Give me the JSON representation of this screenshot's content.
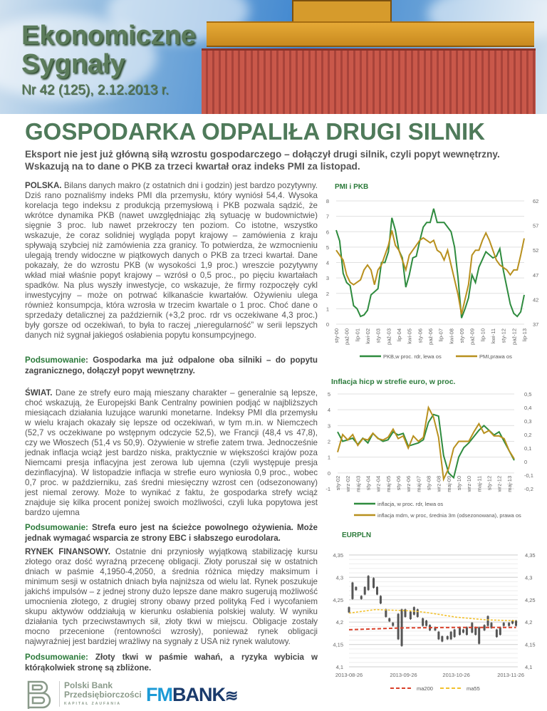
{
  "header": {
    "brand_line1": "Ekonomiczne",
    "brand_line2": "Sygnały",
    "issue": "Nr 42 (125), 2.12.2013 r.",
    "headline": "GOSPODARKA ODPALIŁA DRUGI SILNIK",
    "lead": "Eksport nie jest już główną siłą wzrostu gospodarczego – dołączył drugi silnik, czyli popyt wewnętrzny. Wskazują na to dane o PKB za trzeci kwartał oraz indeks PMI za listopad."
  },
  "sections": [
    {
      "label": "POLSKA.",
      "text": " Bilans danych makro (z ostatnich dni i godzin) jest bardzo pozytywny. Dziś rano poznaliśmy indeks PMI dla przemysłu, który wyniósł 54,4. Wysoka korelacja tego indeksu z produkcją przemysłową i PKB pozwala sądzić, że wkrótce dynamika PKB (nawet uwzględniając złą sytuację w budownictwie) sięgnie 3 proc. lub nawet przekroczy ten poziom. Co istotne, wszystko wskazuje, że coraz solidniej wygląda popyt krajowy – zamówienia z kraju spływają szybciej niż zamówienia zza granicy. To potwierdza, że wzmocnieniu ulegają trendy widoczne w piątkowych danych o PKB za trzeci kwartał. Dane pokazały, że do wzrostu PKB (w wysokości 1,9 proc.) wreszcie pozytywny wkład miał właśnie popyt krajowy – wzrósł o 0,5 proc., po pięciu kwartałach spadków. Na plus wyszły inwestycje, co wskazuje, że firmy rozpoczęły cykl inwestycyjny – może on potrwać kilkanaście kwartałów. Ożywieniu ulega również konsumpcja, która wzrosła w trzecim kwartale o 1 proc. Choć dane o sprzedaży detalicznej za październik (+3,2 proc. rdr vs oczekiwane 4,3 proc.) były gorsze od oczekiwań, to była to raczej „nieregularność” w serii lepszych danych niż sygnał jakiegoś osłabienia popytu konsumpcyjnego.",
      "summary_label": "Podsumowanie",
      "summary": ": Gospodarka ma już odpalone oba silniki – do popytu zagranicznego, dołączył popyt wewnętrzny."
    },
    {
      "label": "ŚWIAT.",
      "text": " Dane ze strefy euro mają mieszany charakter – generalnie są lepsze, choć wskazują, że Europejski Bank Centralny powinien podjąć w najbliższych miesiącach działania luzujące warunki monetarne. Indeksy PMI dla przemysłu w wielu krajach okazały się lepsze od oczekiwań, w tym m.in. w Niemczech (52,7 vs oczekiwane po wstępnym odczycie 52,5), we Francji (48,4 vs 47,8), czy we Włoszech (51,4 vs 50,9). Ożywienie w strefie zatem trwa. Jednocześnie jednak inflacja wciąż jest bardzo niska, praktycznie w większości krajów poza Niemcami presja inflacyjna jest zerowa lub ujemna (czyli występuje presja dezinflacyjna). W listopadzie inflacja w strefie euro wyniosła 0,9 proc., wobec 0,7 proc. w październiku, zaś średni miesięczny wzrost cen (odsezonowany) jest niemal zerowy. Może to wynikać z faktu, że gospodarka strefy wciąż znajduje się kilka procent poniżej swoich możliwości, czyli luka popytowa jest bardzo ujemna",
      "summary_label": "Podsumowanie:",
      "summary": " Strefa euro jest na ścieżce powolnego ożywienia. Może jednak wymagać wsparcia ze strony EBC i słabszego eurodolara."
    },
    {
      "label": "RYNEK FINANSOWY.",
      "text": " Ostatnie dni przyniosły wyjątkową stabilizację kursu złotego oraz dość wyraźną przecenę obligacji. Złoty poruszał się w ostatnich dniach w paśmie 4,1950-4,2050, a średnia różnica między maksimum i minimum sesji w ostatnich dniach była najniższa od wielu lat. Rynek poszukuje jakichś impulsów – z jednej strony dużo lepsze dane makro sugerują możliwość umocnienia złotego, z drugiej strony obawy przed polityką Fed i wycofaniem skupu aktywów oddziałują w kierunku osłabienia polskiej waluty. W wyniku działania tych przeciwstawnych sił, złoty tkwi w miejscu. Obligacje zostały mocno przecenione (rentowności wzrosły), ponieważ rynek obligacji najwyraźniej jest bardziej wrażliwy na sygnały z USA niż rynek walutowy.",
      "summary_label": "Podsumowanie:",
      "summary": " Złoty tkwi w paśmie wahań, a ryzyka wybicia w którąkolwiek stronę są zbliżone."
    }
  ],
  "footer": {
    "logo1_line1": "Polski Bank",
    "logo1_line2": "Przedsiębiorczości",
    "logo1_line3": "KAPITAŁ ZAUFANIA",
    "logo2_a": "FM",
    "logo2_b": "BANK"
  },
  "colors": {
    "green_series": "#2e8b3e",
    "gold_series": "#b8901e",
    "ma200": "#d9402a",
    "ma55": "#f2c12e",
    "title_green": "#2b7a3a",
    "brand_green": "#5c7c5c"
  },
  "chart_data": [
    {
      "type": "line",
      "title": "PMI i PKB",
      "x_ticks": [
        "sty-00",
        "paź-00",
        "lip-01",
        "kwi-02",
        "sty-03",
        "paź-03",
        "lip-04",
        "kwi-05",
        "sty-06",
        "paź-06",
        "lip-07",
        "kwi-08",
        "sty-09",
        "paź-09",
        "lip-10",
        "kwi-11",
        "sty-12",
        "paź-12",
        "lip-13"
      ],
      "ylim_left": [
        0,
        8
      ],
      "yticks_left": [
        "0",
        "1",
        "2",
        "3",
        "4",
        "5",
        "6",
        "7",
        "8"
      ],
      "ylim_right": [
        37,
        62
      ],
      "yticks_right": [
        "37",
        "42",
        "47",
        "52",
        "57",
        "62"
      ],
      "grid": true,
      "legend": "bottom",
      "series": [
        {
          "name": "PKB,w proc. rdr, lewa os",
          "axis": "left",
          "values": [
            6.1,
            5.4,
            3.3,
            2.7,
            2.5,
            1.2,
            1.0,
            0.5,
            0.6,
            0.9,
            1.9,
            2.1,
            2.3,
            4.0,
            4.0,
            4.7,
            6.9,
            6.1,
            4.8,
            4.3,
            2.4,
            3.2,
            4.3,
            4.4,
            5.4,
            6.3,
            6.6,
            6.6,
            7.5,
            6.6,
            6.6,
            6.6,
            6.3,
            6.0,
            5.0,
            3.0,
            0.4,
            1.0,
            1.7,
            3.2,
            2.7,
            3.7,
            4.2,
            4.7,
            4.5,
            4.3,
            4.4,
            4.9,
            3.5,
            2.4,
            1.3,
            0.7,
            0.5,
            0.8,
            1.9
          ]
        },
        {
          "name": "PMI,prawa os",
          "axis": "right",
          "values": [
            52,
            51,
            50,
            47,
            45.5,
            45,
            45.5,
            46,
            48,
            49,
            48,
            45,
            48,
            49,
            51,
            53,
            56,
            53,
            52,
            50,
            48,
            51,
            52,
            53,
            54,
            54.5,
            54,
            53.5,
            54,
            52,
            51.5,
            50,
            52,
            49,
            46,
            43,
            39,
            42,
            45,
            51,
            52,
            52,
            54,
            55.5,
            54,
            52,
            50,
            49,
            48.5,
            48,
            47,
            48,
            48,
            51,
            54.4
          ]
        }
      ]
    },
    {
      "type": "line",
      "title": "Inflacja hicp w strefie euro, w proc.",
      "x_ticks": [
        "sty-02",
        "wrz-02",
        "maj-03",
        "sty-04",
        "wrz-04",
        "maj-05",
        "sty-06",
        "wrz-06",
        "maj-07",
        "sty-08",
        "wrz-08",
        "maj-09",
        "sty-10",
        "wrz-10",
        "maj-11",
        "sty-12",
        "wrz-12",
        "maj-13"
      ],
      "ylim_left": [
        -1,
        5
      ],
      "yticks_left": [
        "-1",
        "0",
        "1",
        "2",
        "3",
        "4",
        "5"
      ],
      "ylim_right": [
        -0.2,
        0.5
      ],
      "yticks_right": [
        "-0,2",
        "-0,1",
        "0",
        "0,1",
        "0,2",
        "0,3",
        "0,4",
        "0,5"
      ],
      "grid": true,
      "legend": "bottom",
      "series": [
        {
          "name": "inflacja, w proc. rdr, lewa os",
          "axis": "left",
          "values": [
            2.6,
            2.0,
            2.1,
            2.2,
            1.8,
            2.2,
            1.9,
            2.5,
            2.2,
            2.0,
            2.1,
            2.6,
            2.4,
            2.5,
            1.7,
            1.8,
            1.9,
            2.1,
            3.2,
            3.7,
            3.6,
            1.1,
            0.0,
            -0.3,
            1.0,
            1.6,
            1.9,
            2.3,
            2.7,
            3.0,
            2.7,
            2.4,
            2.6,
            2.0,
            1.4,
            0.8
          ]
        },
        {
          "name": "inflacja mdm, w proc, średnia 3m (odsezonowana), prawa os",
          "axis": "right",
          "values": [
            0.07,
            0.2,
            0.16,
            0.2,
            0.12,
            0.17,
            0.16,
            0.21,
            0.17,
            0.16,
            0.18,
            0.24,
            0.17,
            0.19,
            0.1,
            0.19,
            0.15,
            0.18,
            0.4,
            0.33,
            0.18,
            -0.13,
            -0.05,
            0.1,
            0.15,
            0.15,
            0.15,
            0.22,
            0.28,
            0.21,
            0.23,
            0.19,
            0.19,
            0.17,
            0.08,
            0.02
          ]
        }
      ]
    },
    {
      "type": "candlestick",
      "title": "EURPLN",
      "x_ticks": [
        "2013-08-26",
        "2013-09-26",
        "2013-10-26",
        "2013-11-26"
      ],
      "xlim": [
        "2013-08-26",
        "2013-11-30"
      ],
      "ylim": [
        4.1,
        4.35
      ],
      "yticks": [
        "4,1",
        "4,15",
        "4,2",
        "4,25",
        "4,3",
        "4,35"
      ],
      "grid": true,
      "legend": "bottom",
      "ranges": [
        [
          "2013-08-26",
          4.22,
          4.235
        ],
        [
          "2013-08-28",
          4.25,
          4.29
        ],
        [
          "2013-08-30",
          4.27,
          4.28
        ],
        [
          "2013-09-02",
          4.25,
          4.26
        ],
        [
          "2013-09-04",
          4.26,
          4.28
        ],
        [
          "2013-09-06",
          4.27,
          4.305
        ],
        [
          "2013-09-09",
          4.275,
          4.3
        ],
        [
          "2013-09-11",
          4.26,
          4.28
        ],
        [
          "2013-09-13",
          4.24,
          4.26
        ],
        [
          "2013-09-16",
          4.21,
          4.23
        ],
        [
          "2013-09-18",
          4.2,
          4.21
        ],
        [
          "2013-09-20",
          4.19,
          4.2
        ],
        [
          "2013-09-23",
          4.16,
          4.22
        ],
        [
          "2013-09-25",
          4.145,
          4.23
        ],
        [
          "2013-09-27",
          4.21,
          4.23
        ],
        [
          "2013-09-30",
          4.205,
          4.225
        ],
        [
          "2013-10-02",
          4.215,
          4.235
        ],
        [
          "2013-10-04",
          4.21,
          4.23
        ],
        [
          "2013-10-07",
          4.19,
          4.21
        ],
        [
          "2013-10-09",
          4.19,
          4.205
        ],
        [
          "2013-10-11",
          4.18,
          4.195
        ],
        [
          "2013-10-14",
          4.18,
          4.19
        ],
        [
          "2013-10-16",
          4.16,
          4.18
        ],
        [
          "2013-10-18",
          4.155,
          4.17
        ],
        [
          "2013-10-21",
          4.16,
          4.17
        ],
        [
          "2013-10-23",
          4.16,
          4.18
        ],
        [
          "2013-10-25",
          4.165,
          4.185
        ],
        [
          "2013-10-28",
          4.17,
          4.19
        ],
        [
          "2013-10-30",
          4.175,
          4.185
        ],
        [
          "2013-11-01",
          4.17,
          4.19
        ],
        [
          "2013-11-04",
          4.175,
          4.2
        ],
        [
          "2013-11-06",
          4.17,
          4.19
        ],
        [
          "2013-11-08",
          4.15,
          4.19
        ],
        [
          "2013-11-11",
          4.18,
          4.195
        ],
        [
          "2013-11-13",
          4.19,
          4.215
        ],
        [
          "2013-11-15",
          4.185,
          4.2
        ],
        [
          "2013-11-18",
          4.165,
          4.185
        ],
        [
          "2013-11-20",
          4.17,
          4.19
        ],
        [
          "2013-11-22",
          4.19,
          4.2
        ],
        [
          "2013-11-25",
          4.19,
          4.2
        ],
        [
          "2013-11-27",
          4.195,
          4.205
        ],
        [
          "2013-11-29",
          4.19,
          4.205
        ]
      ],
      "series": [
        {
          "name": "ma200",
          "style": "dashed",
          "points": [
            [
              "2013-08-26",
              4.183
            ],
            [
              "2013-09-26",
              4.187
            ],
            [
              "2013-10-26",
              4.188
            ],
            [
              "2013-11-29",
              4.188
            ]
          ]
        },
        {
          "name": "ma55",
          "style": "dashed",
          "points": [
            [
              "2013-08-26",
              4.22
            ],
            [
              "2013-09-10",
              4.228
            ],
            [
              "2013-10-01",
              4.225
            ],
            [
              "2013-10-10",
              4.221
            ],
            [
              "2013-10-26",
              4.211
            ],
            [
              "2013-11-12",
              4.205
            ],
            [
              "2013-11-29",
              4.203
            ]
          ]
        }
      ]
    }
  ]
}
